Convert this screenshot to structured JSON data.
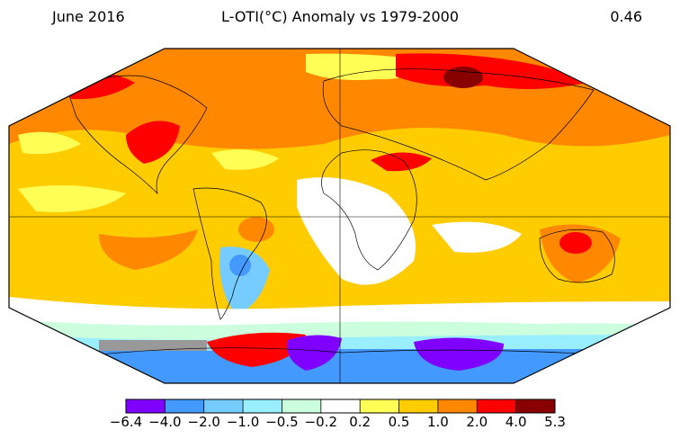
{
  "header": {
    "left": "June 2016",
    "center": "L-OTI(°C) Anomaly vs 1979-2000",
    "right": "0.46"
  },
  "colors": {
    "bins": [
      "#7f00ff",
      "#4499ff",
      "#77ccff",
      "#99eeff",
      "#ccffdd",
      "#ffffff",
      "#ffff55",
      "#ffcc00",
      "#ff8800",
      "#ff0000",
      "#880000"
    ],
    "missing": "#999999",
    "land_outline": "#000000"
  },
  "colorbar": {
    "ticks": [
      "−6.4",
      "−4.0",
      "−2.0",
      "−1.0",
      "−0.5",
      "−0.2",
      "0.2",
      "0.5",
      "1.0",
      "2.0",
      "4.0",
      "5.3"
    ]
  }
}
